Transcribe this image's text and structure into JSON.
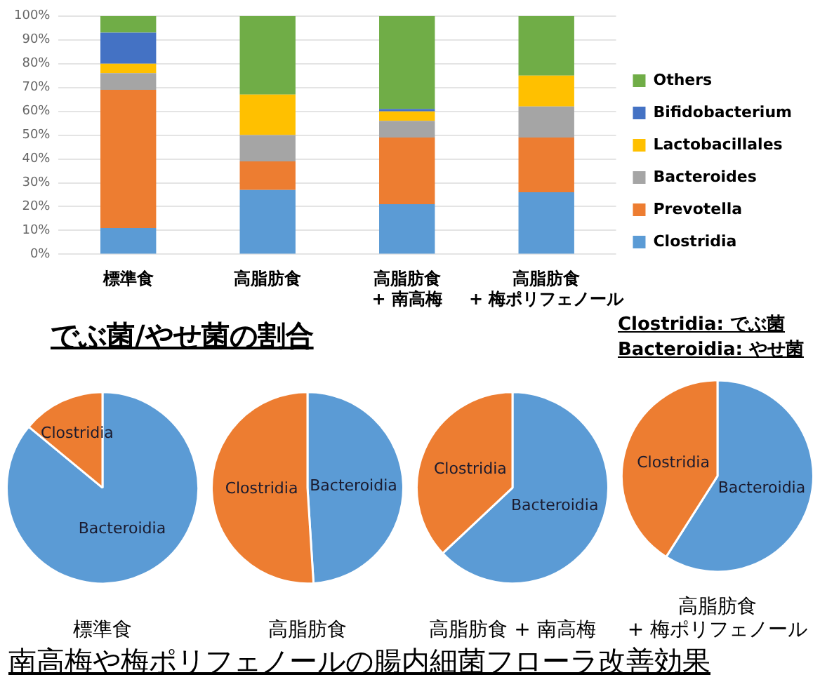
{
  "chart_data": [
    {
      "type": "bar",
      "stacked": true,
      "categories": [
        "標準食",
        "高脂肪食",
        "高脂肪食\n+ 南高梅",
        "高脂肪食\n+ 梅ポリフェノール"
      ],
      "series": [
        {
          "name": "Clostridia",
          "color": "#5b9bd5",
          "values": [
            11,
            27,
            21,
            26
          ]
        },
        {
          "name": "Prevotella",
          "color": "#ed7d31",
          "values": [
            58,
            12,
            28,
            23
          ]
        },
        {
          "name": "Bacteroides",
          "color": "#a5a5a5",
          "values": [
            7,
            11,
            7,
            13
          ]
        },
        {
          "name": "Lactobacillales",
          "color": "#ffc000",
          "values": [
            4,
            17,
            4,
            13
          ]
        },
        {
          "name": "Bifidobacterium",
          "color": "#4472c4",
          "values": [
            13,
            0,
            1,
            0
          ]
        },
        {
          "name": "Others",
          "color": "#70ad47",
          "values": [
            7,
            33,
            39,
            25
          ]
        }
      ],
      "ylim": [
        0,
        100
      ],
      "yticks": [
        {
          "value": 0,
          "label": "0%"
        },
        {
          "value": 10,
          "label": "10%"
        },
        {
          "value": 20,
          "label": "20%"
        },
        {
          "value": 30,
          "label": "30%"
        },
        {
          "value": 40,
          "label": "40%"
        },
        {
          "value": 50,
          "label": "50%"
        },
        {
          "value": 60,
          "label": "60%"
        },
        {
          "value": 70,
          "label": "70%"
        },
        {
          "value": 80,
          "label": "80%"
        },
        {
          "value": 90,
          "label": "90%"
        },
        {
          "value": 100,
          "label": "100%"
        }
      ],
      "grid": "y",
      "legend": "right"
    },
    {
      "type": "pie",
      "title": "標準食",
      "categories": [
        "Bacteroidia",
        "Clostridia"
      ],
      "values": [
        86,
        14
      ],
      "colors": [
        "#5b9bd5",
        "#ed7d31"
      ],
      "annotations": [
        "でぶ菌/やせ菌の割合"
      ]
    },
    {
      "type": "pie",
      "title": "高脂肪食",
      "categories": [
        "Bacteroidia",
        "Clostridia"
      ],
      "values": [
        49,
        51
      ],
      "colors": [
        "#5b9bd5",
        "#ed7d31"
      ]
    },
    {
      "type": "pie",
      "title": "高脂肪食 + 南高梅",
      "categories": [
        "Bacteroidia",
        "Clostridia"
      ],
      "values": [
        63,
        37
      ],
      "colors": [
        "#5b9bd5",
        "#ed7d31"
      ]
    },
    {
      "type": "pie",
      "title": "高脂肪食\n+ 梅ポリフェノール",
      "categories": [
        "Bacteroidia",
        "Clostridia"
      ],
      "values": [
        59,
        41
      ],
      "colors": [
        "#5b9bd5",
        "#ed7d31"
      ],
      "annotations": [
        "Clostridia: でぶ菌",
        "Bacteroidia: やせ菌",
        "南高梅や梅ポリフェノールの腸内細菌フローラ改善効果"
      ]
    }
  ]
}
